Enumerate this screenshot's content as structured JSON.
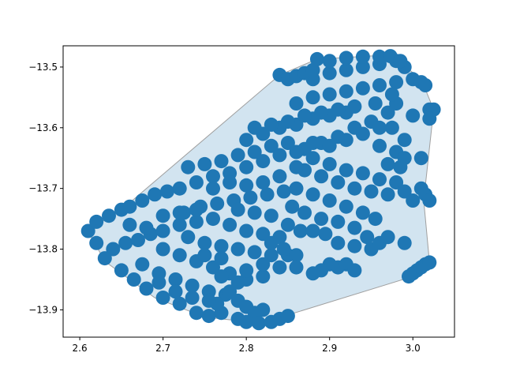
{
  "chart_data": {
    "type": "scatter",
    "title": "",
    "xlabel": "",
    "ylabel": "",
    "xlim": [
      2.58,
      3.05
    ],
    "ylim": [
      -13.945,
      -13.465
    ],
    "xticks": [
      2.6,
      2.7,
      2.8,
      2.9,
      3.0
    ],
    "xtick_labels": [
      "2.6",
      "2.7",
      "2.8",
      "2.9",
      "3.0"
    ],
    "yticks": [
      -13.9,
      -13.8,
      -13.7,
      -13.6,
      -13.5
    ],
    "ytick_labels": [
      "−13.9",
      "−13.8",
      "−13.7",
      "−13.6",
      "−13.5"
    ],
    "grid": false,
    "colors": {
      "points": "#1f77b4",
      "hull_fill": "#1f77b4",
      "hull_edge": "#a0a0a0"
    },
    "hull": {
      "x": [
        2.61,
        2.657,
        2.84,
        2.885,
        2.973,
        3.01,
        3.025,
        3.013,
        3.02,
        2.993,
        2.818,
        2.75,
        2.69,
        2.63,
        2.61
      ],
      "y": [
        -13.77,
        -13.727,
        -13.513,
        -13.487,
        -13.48,
        -13.52,
        -13.57,
        -13.72,
        -13.822,
        -13.848,
        -13.922,
        -13.912,
        -13.88,
        -13.82,
        -13.77
      ]
    },
    "series": [
      {
        "points": [
          [
            2.61,
            -13.77
          ],
          [
            2.62,
            -13.755
          ],
          [
            2.635,
            -13.745
          ],
          [
            2.65,
            -13.735
          ],
          [
            2.66,
            -13.73
          ],
          [
            2.675,
            -13.72
          ],
          [
            2.69,
            -13.71
          ],
          [
            2.705,
            -13.705
          ],
          [
            2.64,
            -13.8
          ],
          [
            2.655,
            -13.79
          ],
          [
            2.67,
            -13.785
          ],
          [
            2.685,
            -13.775
          ],
          [
            2.7,
            -13.77
          ],
          [
            2.72,
            -13.76
          ],
          [
            2.74,
            -13.755
          ],
          [
            2.76,
            -13.75
          ],
          [
            2.62,
            -13.79
          ],
          [
            2.63,
            -13.815
          ],
          [
            2.65,
            -13.835
          ],
          [
            2.665,
            -13.85
          ],
          [
            2.68,
            -13.865
          ],
          [
            2.7,
            -13.88
          ],
          [
            2.72,
            -13.89
          ],
          [
            2.74,
            -13.905
          ],
          [
            2.755,
            -13.91
          ],
          [
            2.675,
            -13.825
          ],
          [
            2.695,
            -13.84
          ],
          [
            2.715,
            -13.85
          ],
          [
            2.735,
            -13.86
          ],
          [
            2.755,
            -13.87
          ],
          [
            2.775,
            -13.875
          ],
          [
            2.7,
            -13.8
          ],
          [
            2.72,
            -13.81
          ],
          [
            2.74,
            -13.82
          ],
          [
            2.76,
            -13.83
          ],
          [
            2.78,
            -13.84
          ],
          [
            2.8,
            -13.85
          ],
          [
            2.82,
            -13.845
          ],
          [
            2.73,
            -13.78
          ],
          [
            2.75,
            -13.79
          ],
          [
            2.77,
            -13.795
          ],
          [
            2.79,
            -13.8
          ],
          [
            2.81,
            -13.805
          ],
          [
            2.83,
            -13.81
          ],
          [
            2.85,
            -13.81
          ],
          [
            2.725,
            -13.74
          ],
          [
            2.745,
            -13.73
          ],
          [
            2.765,
            -13.725
          ],
          [
            2.785,
            -13.72
          ],
          [
            2.805,
            -13.715
          ],
          [
            2.825,
            -13.71
          ],
          [
            2.845,
            -13.705
          ],
          [
            2.72,
            -13.7
          ],
          [
            2.74,
            -13.69
          ],
          [
            2.76,
            -13.68
          ],
          [
            2.78,
            -13.675
          ],
          [
            2.8,
            -13.665
          ],
          [
            2.82,
            -13.655
          ],
          [
            2.84,
            -13.645
          ],
          [
            2.73,
            -13.665
          ],
          [
            2.75,
            -13.66
          ],
          [
            2.77,
            -13.655
          ],
          [
            2.79,
            -13.645
          ],
          [
            2.81,
            -13.64
          ],
          [
            2.83,
            -13.63
          ],
          [
            2.85,
            -13.625
          ],
          [
            2.8,
            -13.62
          ],
          [
            2.82,
            -13.61
          ],
          [
            2.84,
            -13.6
          ],
          [
            2.86,
            -13.595
          ],
          [
            2.88,
            -13.585
          ],
          [
            2.9,
            -13.58
          ],
          [
            2.92,
            -13.575
          ],
          [
            2.81,
            -13.6
          ],
          [
            2.83,
            -13.595
          ],
          [
            2.85,
            -13.59
          ],
          [
            2.87,
            -13.58
          ],
          [
            2.89,
            -13.575
          ],
          [
            2.91,
            -13.57
          ],
          [
            2.93,
            -13.565
          ],
          [
            2.86,
            -13.56
          ],
          [
            2.88,
            -13.55
          ],
          [
            2.9,
            -13.545
          ],
          [
            2.92,
            -13.54
          ],
          [
            2.94,
            -13.535
          ],
          [
            2.96,
            -13.53
          ],
          [
            2.98,
            -13.525
          ],
          [
            2.88,
            -13.52
          ],
          [
            2.9,
            -13.51
          ],
          [
            2.92,
            -13.505
          ],
          [
            2.94,
            -13.5
          ],
          [
            2.96,
            -13.495
          ],
          [
            2.98,
            -13.49
          ],
          [
            2.99,
            -13.5
          ],
          [
            2.885,
            -13.487
          ],
          [
            2.9,
            -13.49
          ],
          [
            2.92,
            -13.485
          ],
          [
            2.94,
            -13.483
          ],
          [
            2.96,
            -13.483
          ],
          [
            2.973,
            -13.482
          ],
          [
            2.985,
            -13.49
          ],
          [
            2.84,
            -13.513
          ],
          [
            2.85,
            -13.52
          ],
          [
            2.86,
            -13.515
          ],
          [
            2.87,
            -13.51
          ],
          [
            2.88,
            -13.505
          ],
          [
            3.0,
            -13.52
          ],
          [
            3.01,
            -13.525
          ],
          [
            3.015,
            -13.53
          ],
          [
            3.02,
            -13.57
          ],
          [
            3.025,
            -13.57
          ],
          [
            3.02,
            -13.585
          ],
          [
            3.0,
            -13.58
          ],
          [
            2.98,
            -13.56
          ],
          [
            2.97,
            -13.575
          ],
          [
            2.95,
            -13.59
          ],
          [
            2.93,
            -13.6
          ],
          [
            2.91,
            -13.615
          ],
          [
            2.89,
            -13.625
          ],
          [
            2.87,
            -13.635
          ],
          [
            2.86,
            -13.64
          ],
          [
            2.88,
            -13.65
          ],
          [
            2.9,
            -13.66
          ],
          [
            2.92,
            -13.67
          ],
          [
            2.94,
            -13.675
          ],
          [
            2.96,
            -13.685
          ],
          [
            2.98,
            -13.69
          ],
          [
            2.87,
            -13.67
          ],
          [
            2.89,
            -13.68
          ],
          [
            2.91,
            -13.69
          ],
          [
            2.93,
            -13.7
          ],
          [
            2.95,
            -13.705
          ],
          [
            2.97,
            -13.71
          ],
          [
            2.99,
            -13.705
          ],
          [
            2.86,
            -13.7
          ],
          [
            2.88,
            -13.71
          ],
          [
            2.9,
            -13.72
          ],
          [
            2.92,
            -13.73
          ],
          [
            2.94,
            -13.74
          ],
          [
            2.955,
            -13.75
          ],
          [
            2.855,
            -13.73
          ],
          [
            2.87,
            -13.74
          ],
          [
            2.89,
            -13.75
          ],
          [
            2.91,
            -13.755
          ],
          [
            2.93,
            -13.765
          ],
          [
            2.945,
            -13.78
          ],
          [
            2.85,
            -13.76
          ],
          [
            2.865,
            -13.77
          ],
          [
            2.84,
            -13.78
          ],
          [
            2.83,
            -13.79
          ],
          [
            2.845,
            -13.8
          ],
          [
            2.86,
            -13.81
          ],
          [
            2.88,
            -13.77
          ],
          [
            2.895,
            -13.775
          ],
          [
            2.91,
            -13.79
          ],
          [
            2.93,
            -13.795
          ],
          [
            2.95,
            -13.8
          ],
          [
            2.96,
            -13.79
          ],
          [
            2.97,
            -13.78
          ],
          [
            2.99,
            -13.79
          ],
          [
            3.0,
            -13.72
          ],
          [
            3.01,
            -13.7
          ],
          [
            3.015,
            -13.71
          ],
          [
            3.02,
            -13.72
          ],
          [
            2.975,
            -13.6
          ],
          [
            2.99,
            -13.62
          ],
          [
            2.96,
            -13.63
          ],
          [
            2.98,
            -13.64
          ],
          [
            2.99,
            -13.65
          ],
          [
            3.01,
            -13.65
          ],
          [
            2.985,
            -13.665
          ],
          [
            2.97,
            -13.66
          ],
          [
            2.9,
            -13.825
          ],
          [
            2.91,
            -13.83
          ],
          [
            2.92,
            -13.825
          ],
          [
            2.93,
            -13.835
          ],
          [
            2.89,
            -13.835
          ],
          [
            2.88,
            -13.84
          ],
          [
            2.995,
            -13.845
          ],
          [
            3.0,
            -13.84
          ],
          [
            3.005,
            -13.835
          ],
          [
            3.01,
            -13.83
          ],
          [
            3.015,
            -13.825
          ],
          [
            3.02,
            -13.822
          ],
          [
            2.78,
            -13.87
          ],
          [
            2.79,
            -13.885
          ],
          [
            2.8,
            -13.895
          ],
          [
            2.81,
            -13.905
          ],
          [
            2.79,
            -13.915
          ],
          [
            2.8,
            -13.92
          ],
          [
            2.815,
            -13.922
          ],
          [
            2.83,
            -13.92
          ],
          [
            2.84,
            -13.915
          ],
          [
            2.85,
            -13.91
          ],
          [
            2.82,
            -13.9
          ],
          [
            2.77,
            -13.905
          ],
          [
            2.765,
            -13.89
          ],
          [
            2.66,
            -13.76
          ],
          [
            2.68,
            -13.765
          ],
          [
            2.7,
            -13.745
          ],
          [
            2.72,
            -13.74
          ],
          [
            2.74,
            -13.735
          ],
          [
            2.76,
            -13.7
          ],
          [
            2.78,
            -13.69
          ],
          [
            2.8,
            -13.695
          ],
          [
            2.82,
            -13.69
          ],
          [
            2.84,
            -13.68
          ],
          [
            2.86,
            -13.665
          ],
          [
            2.88,
            -13.625
          ],
          [
            2.9,
            -13.63
          ],
          [
            2.92,
            -13.62
          ],
          [
            2.94,
            -13.61
          ],
          [
            2.96,
            -13.6
          ],
          [
            2.955,
            -13.56
          ],
          [
            2.975,
            -13.545
          ],
          [
            2.78,
            -13.76
          ],
          [
            2.8,
            -13.77
          ],
          [
            2.82,
            -13.775
          ],
          [
            2.79,
            -13.735
          ],
          [
            2.81,
            -13.74
          ],
          [
            2.83,
            -13.745
          ],
          [
            2.695,
            -13.855
          ],
          [
            2.715,
            -13.87
          ],
          [
            2.735,
            -13.88
          ],
          [
            2.755,
            -13.885
          ],
          [
            2.77,
            -13.845
          ],
          [
            2.79,
            -13.855
          ],
          [
            2.8,
            -13.835
          ],
          [
            2.82,
            -13.825
          ],
          [
            2.84,
            -13.83
          ],
          [
            2.86,
            -13.83
          ],
          [
            2.75,
            -13.81
          ],
          [
            2.77,
            -13.815
          ]
        ]
      }
    ]
  }
}
